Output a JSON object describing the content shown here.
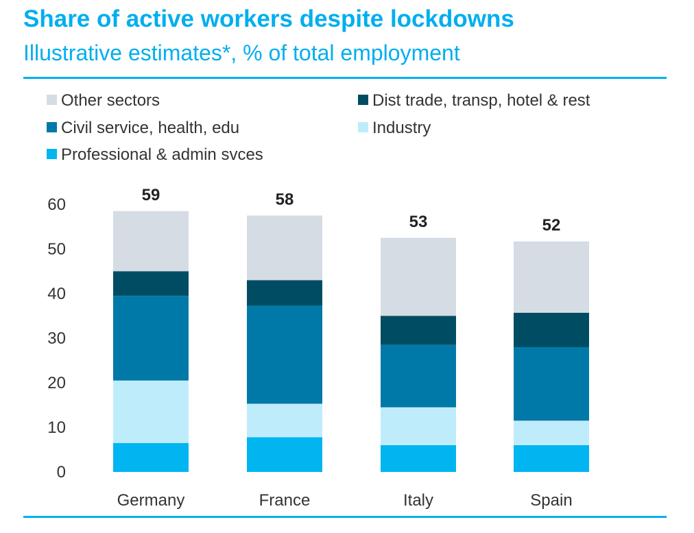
{
  "chart_data": {
    "type": "bar",
    "stacked": true,
    "title": "Share of active workers despite lockdowns",
    "subtitle": "Illustrative estimates*, % of total employment",
    "categories": [
      "Germany",
      "France",
      "Italy",
      "Spain"
    ],
    "series": [
      {
        "name": "Professional & admin svces",
        "color": "#00b5f0",
        "values": [
          6.5,
          7.8,
          6.0,
          6.0
        ]
      },
      {
        "name": "Industry",
        "color": "#bfecfb",
        "values": [
          14.0,
          7.5,
          8.5,
          5.5
        ]
      },
      {
        "name": "Civil service, health, edu",
        "color": "#0079a8",
        "values": [
          19.0,
          22.0,
          14.0,
          16.5
        ]
      },
      {
        "name": "Dist trade, transp, hotel & rest",
        "color": "#004d63",
        "values": [
          5.5,
          5.7,
          6.5,
          7.7
        ]
      },
      {
        "name": "Other sectors",
        "color": "#d6dce4",
        "values": [
          13.5,
          14.5,
          17.5,
          16.0
        ]
      }
    ],
    "totals": [
      "59",
      "58",
      "53",
      "52"
    ],
    "ylim": [
      0,
      60
    ],
    "yticks": [
      "0",
      "10",
      "20",
      "30",
      "40",
      "50",
      "60"
    ],
    "legend": [
      {
        "label": "Other sectors",
        "color": "#d6dce4"
      },
      {
        "label": "Dist trade, transp, hotel & rest",
        "color": "#004d63"
      },
      {
        "label": "Civil service, health, edu",
        "color": "#0079a8"
      },
      {
        "label": "Industry",
        "color": "#bfecfb"
      },
      {
        "label": "Professional & admin svces",
        "color": "#00b5f0"
      }
    ],
    "grid": false,
    "legend_position": "top"
  }
}
